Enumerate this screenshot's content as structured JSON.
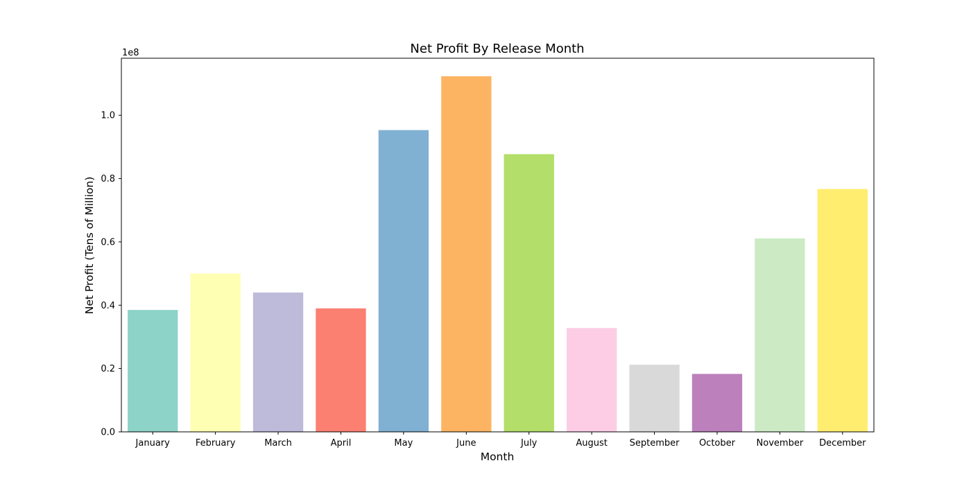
{
  "chart_data": {
    "type": "bar",
    "title": "Net Profit By Release Month",
    "xlabel": "Month",
    "ylabel": "Net Profit (Tens of Million)",
    "y_offset_label": "1e8",
    "categories": [
      "January",
      "February",
      "March",
      "April",
      "May",
      "June",
      "July",
      "August",
      "September",
      "October",
      "November",
      "December"
    ],
    "values": [
      38500000,
      50000000,
      44000000,
      39000000,
      95300000,
      112300000,
      87700000,
      32800000,
      21200000,
      18300000,
      61100000,
      76700000
    ],
    "colors": [
      "#8dd3c7",
      "#ffffb3",
      "#bebada",
      "#fb8072",
      "#80b1d3",
      "#fdb462",
      "#b3de69",
      "#fccde5",
      "#d9d9d9",
      "#bc80bd",
      "#ccebc5",
      "#ffed6f"
    ],
    "ylim": [
      0,
      118000000
    ],
    "yticks": [
      0,
      20000000,
      40000000,
      60000000,
      80000000,
      100000000
    ],
    "ytick_labels": [
      "0.0",
      "0.2",
      "0.4",
      "0.6",
      "0.8",
      "1.0"
    ],
    "grid": false,
    "legend": "none"
  }
}
